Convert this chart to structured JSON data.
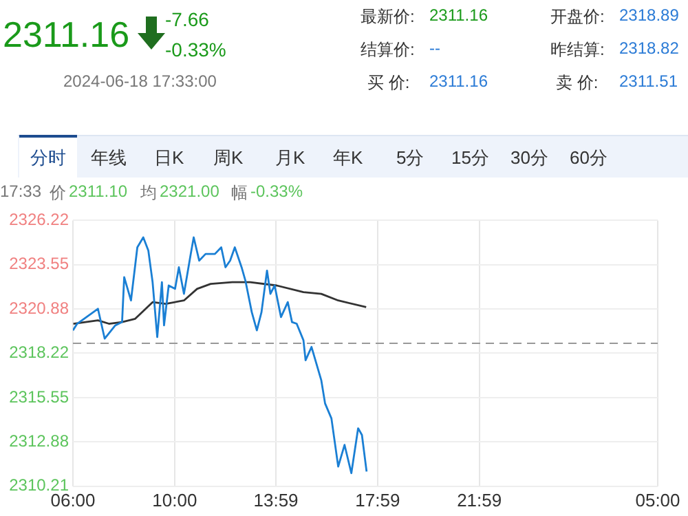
{
  "chart_data": {
    "type": "line",
    "annotations": [
      "2311.16",
      "-7.66",
      "-0.33%",
      "2024-06-18 17:33:00",
      "最新价:",
      "2311.16",
      "开盘价:",
      "2318.89",
      "结算价:",
      "--",
      "昨结算:",
      "2318.82",
      "买  价:",
      "2311.16",
      "卖  价:",
      "2311.51",
      "分时",
      "年线",
      "日K",
      "周K",
      "月K",
      "年K",
      "5分",
      "15分",
      "30分",
      "60分",
      "17:33",
      "价",
      "2311.10",
      "均",
      "2321.00",
      "幅",
      "-0.33%"
    ],
    "x": [
      "2024-06-18T06:00",
      "2024-06-18T06:10",
      "2024-06-18T06:59",
      "2024-06-18T07:15",
      "2024-06-18T07:40",
      "2024-06-18T07:56",
      "2024-06-18T08:01",
      "2024-06-18T08:17",
      "2024-06-18T08:32",
      "2024-06-18T08:46",
      "2024-06-18T08:58",
      "2024-06-18T09:08",
      "2024-06-18T09:19",
      "2024-06-18T09:30",
      "2024-06-18T09:35",
      "2024-06-18T09:46",
      "2024-06-18T10:01",
      "2024-06-18T10:10",
      "2024-06-18T10:22",
      "2024-06-18T10:38",
      "2024-06-18T10:45",
      "2024-06-18T10:58",
      "2024-06-18T11:13",
      "2024-06-18T11:35",
      "2024-06-18T11:50",
      "2024-06-18T12:00",
      "2024-06-18T12:11",
      "2024-06-18T12:22",
      "2024-06-18T12:38",
      "2024-06-18T12:47",
      "2024-06-18T13:02",
      "2024-06-18T13:14",
      "2024-06-18T13:25",
      "2024-06-18T13:38",
      "2024-06-18T13:46",
      "2024-06-18T13:56",
      "2024-06-18T14:11",
      "2024-06-18T14:27",
      "2024-06-18T14:37",
      "2024-06-18T14:48",
      "2024-06-18T15:04",
      "2024-06-18T15:09",
      "2024-06-18T15:23",
      "2024-06-18T15:46",
      "2024-06-18T15:55",
      "2024-06-18T16:10",
      "2024-06-18T16:26",
      "2024-06-18T16:41",
      "2024-06-18T16:57",
      "2024-06-18T17:13",
      "2024-06-18T17:22",
      "2024-06-18T17:33"
    ],
    "series": [
      {
        "color": "#1a7fd4",
        "values": [
          2319.6,
          2320.0,
          2320.9,
          2319.1,
          2319.9,
          2320.1,
          2322.8,
          2321.4,
          2324.6,
          2325.2,
          2324.4,
          2322.5,
          2319.2,
          2322.5,
          2319.9,
          2322.3,
          2322.1,
          2323.4,
          2321.8,
          2324.2,
          2325.2,
          2323.8,
          2324.2,
          2324.2,
          2324.6,
          2323.4,
          2323.8,
          2324.6,
          2323.4,
          2322.6,
          2320.7,
          2319.6,
          2320.7,
          2323.2,
          2321.8,
          2322.3,
          2320.4,
          2321.3,
          2320.1,
          2320.0,
          2319.0,
          2317.8,
          2318.6,
          2316.6,
          2315.2,
          2314.3,
          2311.4,
          2312.7,
          2311.0,
          2313.7,
          2313.3,
          2311.1
        ]
      },
      {
        "color": "#333333",
        "x": [
          "2024-06-18T06:01",
          "2024-06-18T06:59",
          "2024-06-18T07:25",
          "2024-06-18T07:56",
          "2024-06-18T08:27",
          "2024-06-18T09:08",
          "2024-06-18T09:39",
          "2024-06-18T10:22",
          "2024-06-18T10:53",
          "2024-06-18T11:25",
          "2024-06-18T12:16",
          "2024-06-18T12:58",
          "2024-06-18T14:01",
          "2024-06-18T15:04",
          "2024-06-18T15:46",
          "2024-06-18T16:26",
          "2024-06-18T17:32"
        ],
        "values": [
          2320.0,
          2320.2,
          2320.0,
          2320.1,
          2320.3,
          2321.3,
          2321.2,
          2321.4,
          2322.1,
          2322.4,
          2322.5,
          2322.5,
          2322.3,
          2321.9,
          2321.8,
          2321.4,
          2321.0
        ]
      }
    ],
    "xlim": [
      "2024-06-18T06:00",
      "2024-06-19T05:00"
    ],
    "xticks": [
      {
        "value": "2024-06-18T06:00",
        "label": "06:00"
      },
      {
        "value": "2024-06-18T10:00",
        "label": "10:00"
      },
      {
        "value": "2024-06-18T13:59",
        "label": "13:59"
      },
      {
        "value": "2024-06-18T17:59",
        "label": "17:59"
      },
      {
        "value": "2024-06-18T21:59",
        "label": "21:59"
      },
      {
        "value": "2024-06-19T05:00",
        "label": "05:00"
      }
    ],
    "ylim": [
      2310.21,
      2326.22
    ],
    "yticks": [
      2310.21,
      2312.88,
      2315.55,
      2318.22,
      2320.88,
      2323.55,
      2326.22
    ],
    "ref_lines": [
      {
        "axis": "y",
        "value": 2318.82,
        "color": "#999999",
        "line_style": "dashed"
      }
    ],
    "grid": true,
    "marker": "none",
    "line_style": "solid",
    "legend": false
  }
}
